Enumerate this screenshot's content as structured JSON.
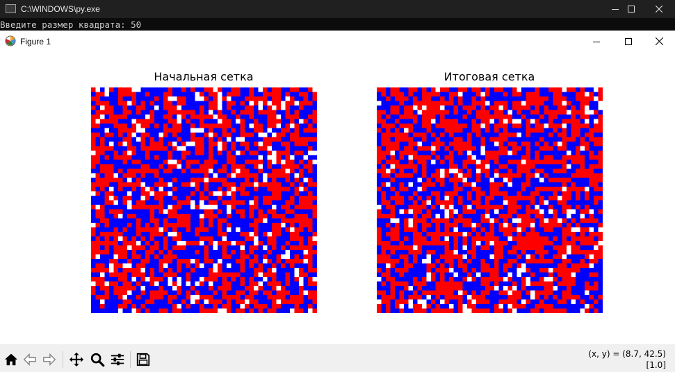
{
  "console": {
    "title": "C:\\WINDOWS\\py.exe",
    "prompt_line": "Введите размер квадрата: 50"
  },
  "figure": {
    "title": "Figure 1",
    "coordinates": "(x, y) = (8.7, 42.5)",
    "value": "[1.0]"
  },
  "toolbar": {
    "buttons": [
      "home-icon",
      "back-icon",
      "forward-icon",
      "pan-icon",
      "zoom-icon",
      "configure-subplots-icon",
      "save-icon"
    ]
  },
  "chart_data": [
    {
      "type": "heatmap",
      "title": "Начальная сетка",
      "grid_size": 50,
      "colors": {
        "-1": "#0000ff",
        "0": "#ffffff",
        "1": "#ff0000"
      },
      "axes_visible": false,
      "seed": 7,
      "weights": {
        "-1": 0.45,
        "0": 0.1,
        "1": 0.45
      }
    },
    {
      "type": "heatmap",
      "title": "Итоговая сетка",
      "grid_size": 50,
      "colors": {
        "-1": "#0000ff",
        "0": "#ffffff",
        "1": "#ff0000"
      },
      "axes_visible": false,
      "seed": 19,
      "weights": {
        "-1": 0.4,
        "0": 0.08,
        "1": 0.52
      }
    }
  ]
}
